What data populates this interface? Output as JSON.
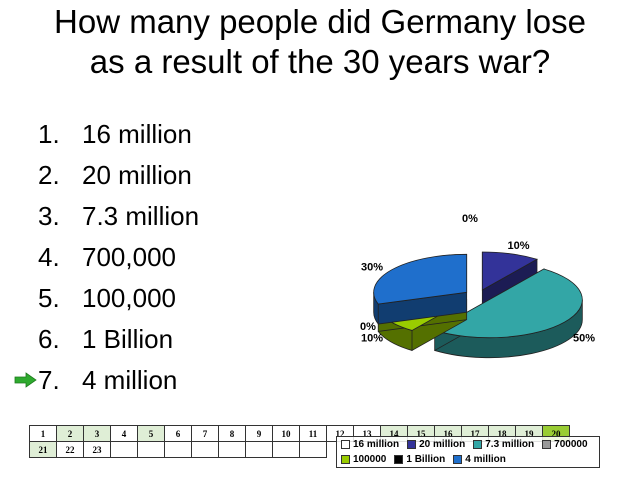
{
  "slide": {
    "title": "How many people did Germany lose as a result of the 30 years war?",
    "answers": [
      {
        "number": "1.",
        "text": "16 million",
        "correct": false
      },
      {
        "number": "2.",
        "text": "20 million",
        "correct": false
      },
      {
        "number": "3.",
        "text": "7.3 million",
        "correct": false
      },
      {
        "number": "4.",
        "text": "700,000",
        "correct": false
      },
      {
        "number": "5.",
        "text": "100,000",
        "correct": false
      },
      {
        "number": "6.",
        "text": "1 Billion",
        "correct": false
      },
      {
        "number": "7.",
        "text": "4 million",
        "correct": true
      }
    ],
    "arrow_icon": "green-arrow-right-icon"
  },
  "response_grid": {
    "rows": [
      [
        "1",
        "2",
        "3",
        "4",
        "5",
        "6",
        "7",
        "8",
        "9",
        "10",
        "11",
        "12",
        "13",
        "14",
        "15",
        "16",
        "17",
        "18",
        "19",
        "20"
      ],
      [
        "21",
        "22",
        "23",
        "",
        "",
        "",
        "",
        "",
        "",
        "",
        "",
        "",
        "",
        "",
        "",
        "",
        "",
        "",
        "",
        ""
      ]
    ],
    "highlighted_cells": [
      "2",
      "3",
      "5",
      "14",
      "15",
      "16",
      "17",
      "18",
      "19",
      "20",
      "21"
    ],
    "highlight_color": "#dfeed6",
    "strong_highlight_cell": "20",
    "strong_highlight_color": "#99cc33"
  },
  "chart_data": {
    "type": "pie",
    "style": "3d-exploded",
    "categories": [
      "16 million",
      "20 million",
      "7.3 million",
      "700000",
      "100000",
      "1 Billion",
      "4 million"
    ],
    "values": [
      0,
      10,
      50,
      0,
      10,
      0,
      30
    ],
    "value_labels": [
      "0%",
      "10%",
      "50%",
      "0%",
      "10%",
      "0%",
      "30%"
    ],
    "colors": [
      "#ffffff",
      "#333399",
      "#33a6a6",
      "#999999",
      "#99cc00",
      "#000000",
      "#1f6fcc"
    ],
    "legend_position": "bottom-right"
  }
}
